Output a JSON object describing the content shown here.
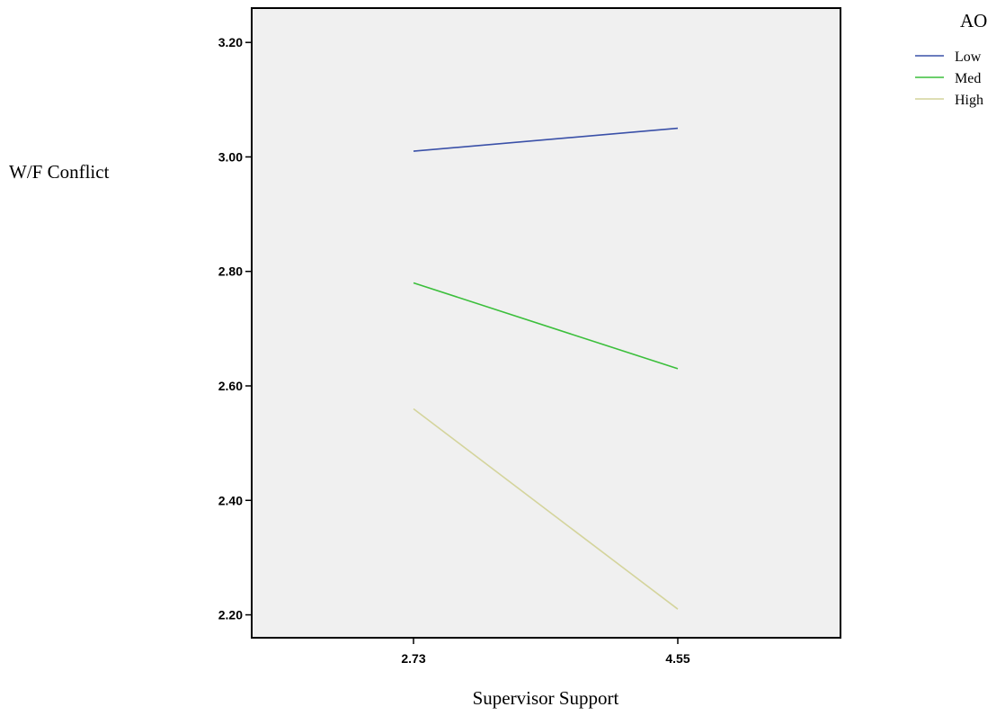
{
  "chart_data": {
    "type": "line",
    "title": "",
    "xlabel": "Supervisor Support",
    "ylabel": "W/F Conflict",
    "x": [
      2.73,
      4.55
    ],
    "x_tick_labels": [
      "2.73",
      "4.55"
    ],
    "ylim": [
      2.16,
      3.26
    ],
    "y_ticks": [
      2.2,
      2.4,
      2.6,
      2.8,
      3.0,
      3.2
    ],
    "y_tick_labels": [
      "2.20",
      "2.40",
      "2.60",
      "2.80",
      "3.00",
      "3.20"
    ],
    "grid": false,
    "legend": {
      "title": "AO",
      "placement": "top-right"
    },
    "series": [
      {
        "name": "Low",
        "values": [
          3.01,
          3.05
        ],
        "color": "#3a50a8"
      },
      {
        "name": "Med",
        "values": [
          2.78,
          2.63
        ],
        "color": "#3cbf3c"
      },
      {
        "name": "High",
        "values": [
          2.56,
          2.21
        ],
        "color": "#d4d49c"
      }
    ]
  }
}
